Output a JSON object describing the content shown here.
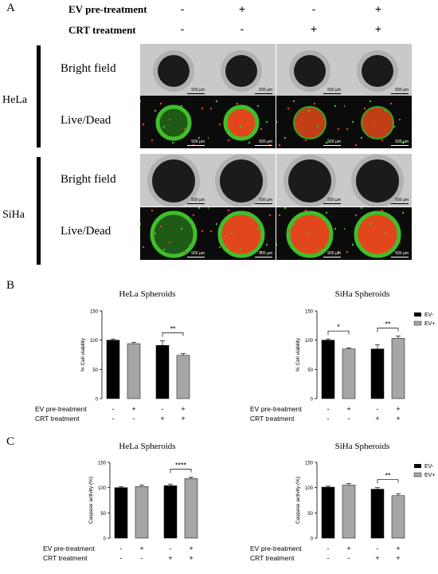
{
  "panel_labels": {
    "a": "A",
    "b": "B",
    "c": "C"
  },
  "panelA": {
    "headers": [
      "EV pre-treatment",
      "CRT treatment"
    ],
    "ev_signs": [
      "-",
      "+",
      "-",
      "+"
    ],
    "crt_signs": [
      "-",
      "-",
      "+",
      "+"
    ],
    "cell_lines": [
      "HeLa",
      "SiHa"
    ],
    "row_labels": [
      "Bright field",
      "Live/Dead"
    ],
    "scale_bar": "500 µm",
    "colors": {
      "live": "#3fbf2a",
      "dead": "#e2471c",
      "bright_bg": "#c9c9c9",
      "dark_bg": "#0b0b0b"
    }
  },
  "legend": {
    "ev_minus": "EV-",
    "ev_plus": "EV+",
    "colors": {
      "ev_minus": "#000000",
      "ev_plus": "#a6a6a6"
    }
  },
  "x_rows": {
    "ev_label": "EV pre-treatment",
    "crt_label": "CRT treatment",
    "ev_signs": [
      "-",
      "+",
      "-",
      "+"
    ],
    "crt_signs": [
      "-",
      "-",
      "+",
      "+"
    ]
  },
  "chart_data": [
    {
      "type": "bar",
      "title": "HeLa Spheroids",
      "ylabel": "% Cell viability",
      "ylim": [
        0,
        150
      ],
      "yticks": [
        0,
        50,
        100,
        150
      ],
      "categories": [
        "EV-/CRT-",
        "EV+/CRT-",
        "EV-/CRT+",
        "EV+/CRT+"
      ],
      "values": [
        100,
        94,
        91,
        74
      ],
      "errors": [
        2,
        2,
        8,
        3
      ],
      "significance": [
        {
          "between": [
            2,
            3
          ],
          "label": "**"
        }
      ]
    },
    {
      "type": "bar",
      "title": "SiHa Spheroids",
      "ylabel": "% Cell viability",
      "ylim": [
        0,
        150
      ],
      "yticks": [
        0,
        50,
        100,
        150
      ],
      "categories": [
        "EV-/CRT-",
        "EV+/CRT-",
        "EV-/CRT+",
        "EV+/CRT+"
      ],
      "values": [
        100,
        85,
        85,
        103
      ],
      "errors": [
        2,
        2,
        7,
        4
      ],
      "significance": [
        {
          "between": [
            0,
            1
          ],
          "label": "*"
        },
        {
          "between": [
            2,
            3
          ],
          "label": "**"
        }
      ]
    },
    {
      "type": "bar",
      "title": "HeLa Spheroids",
      "ylabel": "Caspase activity (%)",
      "ylim": [
        0,
        150
      ],
      "yticks": [
        0,
        50,
        100,
        150
      ],
      "categories": [
        "EV-/CRT-",
        "EV+/CRT-",
        "EV-/CRT+",
        "EV+/CRT+"
      ],
      "values": [
        100,
        102,
        104,
        118
      ],
      "errors": [
        2,
        3,
        3,
        3
      ],
      "significance": [
        {
          "between": [
            2,
            3
          ],
          "label": "****"
        }
      ]
    },
    {
      "type": "bar",
      "title": "SiHa Spheroids",
      "ylabel": "Caspase activity (%)",
      "ylim": [
        0,
        150
      ],
      "yticks": [
        0,
        50,
        100,
        150
      ],
      "categories": [
        "EV-/CRT-",
        "EV+/CRT-",
        "EV-/CRT+",
        "EV+/CRT+"
      ],
      "values": [
        101,
        105,
        97,
        84
      ],
      "errors": [
        2,
        3,
        3,
        4
      ],
      "significance": [
        {
          "between": [
            2,
            3
          ],
          "label": "**"
        }
      ]
    }
  ]
}
